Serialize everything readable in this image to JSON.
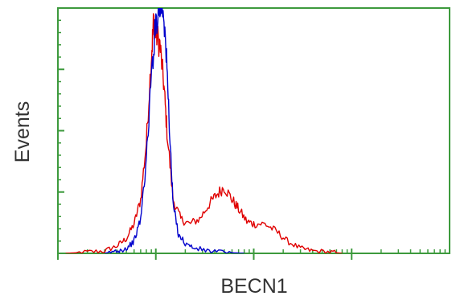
{
  "chart_data": {
    "type": "line",
    "title": "",
    "xlabel": "BECN1",
    "ylabel": "Events",
    "x_scale": "log",
    "xlim": [
      1,
      10000
    ],
    "ylim": [
      0,
      100
    ],
    "major_x_ticks": [
      1,
      10,
      100,
      1000
    ],
    "y_ticks": [
      0,
      25,
      50,
      75,
      100
    ],
    "grid": false,
    "legend": "none",
    "colors": {
      "frame": "#3d9a3d",
      "axis_ticks": "#3d9a3d",
      "red_series": "#e00000",
      "blue_series": "#0000cc"
    },
    "series": [
      {
        "color": "#e00000",
        "points": [
          [
            1.2,
            0
          ],
          [
            2,
            0.5
          ],
          [
            3,
            1
          ],
          [
            4,
            3
          ],
          [
            5,
            6
          ],
          [
            6,
            12
          ],
          [
            7,
            22
          ],
          [
            8,
            45
          ],
          [
            9,
            80
          ],
          [
            9.5,
            95
          ],
          [
            10,
            90
          ],
          [
            11,
            85
          ],
          [
            12,
            70
          ],
          [
            13,
            50
          ],
          [
            15,
            22
          ],
          [
            18,
            14
          ],
          [
            22,
            12
          ],
          [
            28,
            14
          ],
          [
            35,
            20
          ],
          [
            42,
            24
          ],
          [
            50,
            27
          ],
          [
            60,
            22
          ],
          [
            70,
            18
          ],
          [
            85,
            13
          ],
          [
            100,
            12
          ],
          [
            130,
            12
          ],
          [
            170,
            9
          ],
          [
            220,
            5
          ],
          [
            300,
            2
          ],
          [
            400,
            1
          ],
          [
            600,
            0.5
          ],
          [
            800,
            0
          ]
        ]
      },
      {
        "color": "#0000cc",
        "points": [
          [
            3,
            0
          ],
          [
            4,
            1
          ],
          [
            5,
            2
          ],
          [
            6,
            5
          ],
          [
            7,
            14
          ],
          [
            8,
            38
          ],
          [
            9,
            72
          ],
          [
            10,
            95
          ],
          [
            11,
            100
          ],
          [
            12,
            100
          ],
          [
            13,
            75
          ],
          [
            14,
            45
          ],
          [
            15,
            20
          ],
          [
            17,
            8
          ],
          [
            20,
            4
          ],
          [
            25,
            2
          ],
          [
            35,
            1
          ],
          [
            50,
            0.4
          ],
          [
            80,
            0
          ]
        ]
      }
    ]
  }
}
